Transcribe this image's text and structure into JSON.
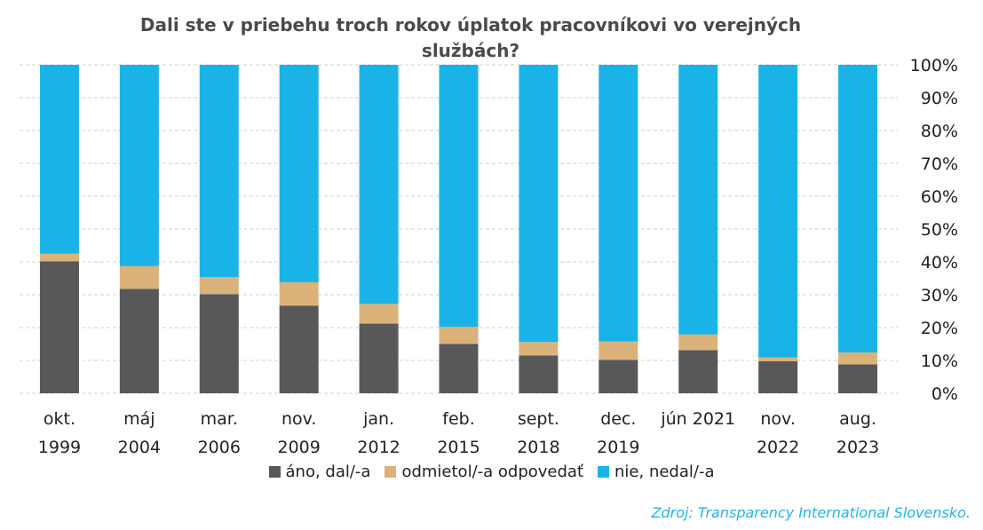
{
  "chart_data": {
    "type": "bar",
    "stacked": true,
    "title": "Dali ste v priebehu troch rokov úplatok pracovníkovi vo verejných službách?",
    "categories": [
      [
        "okt.",
        "1999"
      ],
      [
        "máj",
        "2004"
      ],
      [
        "mar.",
        "2006"
      ],
      [
        "nov.",
        "2009"
      ],
      [
        "jan.",
        "2012"
      ],
      [
        "feb.",
        "2015"
      ],
      [
        "sept.",
        "2018"
      ],
      [
        "dec.",
        "2019"
      ],
      [
        "jún 2021",
        ""
      ],
      [
        "nov.",
        "2022"
      ],
      [
        "aug.",
        "2023"
      ]
    ],
    "series": [
      {
        "name": "áno, dal/-a",
        "color": "#58585a",
        "values": [
          40.2,
          31.8,
          30.2,
          26.7,
          21.2,
          15.0,
          11.5,
          10.2,
          13.1,
          9.8,
          8.8
        ]
      },
      {
        "name": "odmietol/-a odpovedať",
        "color": "#dbb27a",
        "values": [
          2.3,
          6.9,
          5.2,
          7.1,
          6.0,
          5.2,
          4.1,
          5.6,
          4.8,
          1.1,
          3.6
        ]
      },
      {
        "name": "nie, nedal/-a",
        "color": "#1ab3e8",
        "values": [
          57.5,
          61.3,
          64.6,
          66.2,
          72.8,
          79.8,
          84.4,
          84.2,
          82.1,
          89.1,
          87.6
        ]
      }
    ],
    "yticks": [
      "0%",
      "10%",
      "20%",
      "30%",
      "40%",
      "50%",
      "60%",
      "70%",
      "80%",
      "90%",
      "100%"
    ],
    "ylim": [
      0,
      100
    ],
    "axis_position": "right",
    "grid": true,
    "legend_position": "bottom"
  },
  "source": "Zdroj: Transparency International Slovensko."
}
